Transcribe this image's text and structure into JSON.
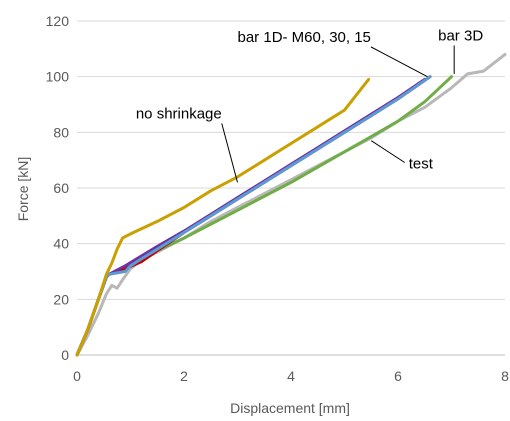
{
  "chart_data": {
    "type": "line",
    "title": "",
    "xlabel": "Displacement [mm]",
    "ylabel": "Force [kN]",
    "xlim": [
      0,
      8
    ],
    "ylim": [
      0,
      120
    ],
    "xticks": [
      "0",
      "2",
      "4",
      "6",
      "8"
    ],
    "yticks": [
      "0",
      "20",
      "40",
      "60",
      "80",
      "100",
      "120"
    ],
    "grid": "horizontal",
    "legend": "none",
    "series": [
      {
        "name": "test",
        "color": "#b8b8b8",
        "points": [
          [
            0,
            0
          ],
          [
            0.2,
            7
          ],
          [
            0.4,
            15
          ],
          [
            0.55,
            22
          ],
          [
            0.65,
            25
          ],
          [
            0.75,
            24
          ],
          [
            0.85,
            27
          ],
          [
            1.0,
            31
          ],
          [
            1.2,
            34
          ],
          [
            1.5,
            37
          ],
          [
            2.0,
            42
          ],
          [
            2.5,
            48
          ],
          [
            3.0,
            53
          ],
          [
            3.5,
            58
          ],
          [
            4.0,
            63
          ],
          [
            4.5,
            68
          ],
          [
            5.0,
            73
          ],
          [
            5.5,
            78
          ],
          [
            6.0,
            84
          ],
          [
            6.5,
            89
          ],
          [
            7.0,
            96
          ],
          [
            7.3,
            101
          ],
          [
            7.6,
            102
          ],
          [
            8.0,
            108
          ]
        ]
      },
      {
        "name": "bar 3D",
        "color": "#70ad47",
        "points": [
          [
            0,
            0
          ],
          [
            0.2,
            9
          ],
          [
            0.4,
            20
          ],
          [
            0.55,
            28
          ],
          [
            0.6,
            29
          ],
          [
            1.0,
            33
          ],
          [
            1.5,
            37.5
          ],
          [
            2.0,
            42
          ],
          [
            2.5,
            47
          ],
          [
            3.0,
            52
          ],
          [
            3.5,
            57
          ],
          [
            4.0,
            62
          ],
          [
            4.5,
            67.5
          ],
          [
            5.0,
            73
          ],
          [
            5.5,
            78.5
          ],
          [
            6.0,
            84
          ],
          [
            6.5,
            91
          ],
          [
            7.0,
            100
          ]
        ]
      },
      {
        "name": "M60",
        "color": "#c00000",
        "points": [
          [
            0,
            0
          ],
          [
            0.2,
            9
          ],
          [
            0.4,
            20
          ],
          [
            0.55,
            28
          ],
          [
            0.6,
            29
          ],
          [
            0.9,
            31
          ],
          [
            1.2,
            33.5
          ],
          [
            1.5,
            37.5
          ],
          [
            2.0,
            44
          ],
          [
            2.5,
            50
          ],
          [
            3.0,
            56
          ],
          [
            3.5,
            62
          ],
          [
            4.0,
            68
          ],
          [
            4.5,
            74
          ],
          [
            5.0,
            80
          ],
          [
            5.5,
            86
          ],
          [
            6.0,
            92
          ],
          [
            6.6,
            100
          ]
        ]
      },
      {
        "name": "30",
        "color": "#7030a0",
        "points": [
          [
            0,
            0
          ],
          [
            0.2,
            9
          ],
          [
            0.4,
            20
          ],
          [
            0.55,
            28
          ],
          [
            0.6,
            29
          ],
          [
            0.9,
            32
          ],
          [
            1.2,
            35.5
          ],
          [
            1.5,
            39
          ],
          [
            2.0,
            44.5
          ],
          [
            2.5,
            50.5
          ],
          [
            3.0,
            56.5
          ],
          [
            3.5,
            62.5
          ],
          [
            4.0,
            68.5
          ],
          [
            4.5,
            74.5
          ],
          [
            5.0,
            80.5
          ],
          [
            5.5,
            86.5
          ],
          [
            6.0,
            92.5
          ],
          [
            6.5,
            99
          ]
        ]
      },
      {
        "name": "15",
        "color": "#5b9bd5",
        "points": [
          [
            0,
            0
          ],
          [
            0.2,
            9
          ],
          [
            0.4,
            20
          ],
          [
            0.55,
            28
          ],
          [
            0.6,
            29
          ],
          [
            0.9,
            30
          ],
          [
            1.0,
            32
          ],
          [
            1.2,
            34.5
          ],
          [
            1.5,
            38
          ],
          [
            2.0,
            44
          ],
          [
            2.5,
            50
          ],
          [
            3.0,
            56
          ],
          [
            3.5,
            62
          ],
          [
            4.0,
            68
          ],
          [
            4.5,
            74
          ],
          [
            5.0,
            80
          ],
          [
            5.5,
            86
          ],
          [
            6.0,
            92
          ],
          [
            6.6,
            100
          ]
        ]
      },
      {
        "name": "no shrinkage",
        "color": "#c9a000",
        "points": [
          [
            0,
            0
          ],
          [
            0.2,
            9
          ],
          [
            0.4,
            20
          ],
          [
            0.55,
            29
          ],
          [
            0.65,
            33
          ],
          [
            0.75,
            38
          ],
          [
            0.85,
            42
          ],
          [
            1.0,
            43.5
          ],
          [
            1.5,
            48
          ],
          [
            2.0,
            53
          ],
          [
            2.5,
            59
          ],
          [
            3.0,
            64
          ],
          [
            3.5,
            70
          ],
          [
            4.0,
            76
          ],
          [
            4.5,
            82
          ],
          [
            5.0,
            88
          ],
          [
            5.45,
            99
          ]
        ]
      }
    ],
    "annotations": [
      {
        "text": "no shrinkage",
        "x": 1.1,
        "y": 85,
        "point_to": [
          3.0,
          62
        ]
      },
      {
        "text": "bar 1D- M60, 30, 15",
        "x": 3.0,
        "y": 112.5,
        "point_to": [
          6.55,
          100
        ]
      },
      {
        "text": "bar 3D",
        "x": 6.75,
        "y": 113,
        "point_to": [
          7.05,
          101
        ]
      },
      {
        "text": "test",
        "x": 6.2,
        "y": 67,
        "point_to": [
          5.5,
          77
        ]
      }
    ]
  }
}
